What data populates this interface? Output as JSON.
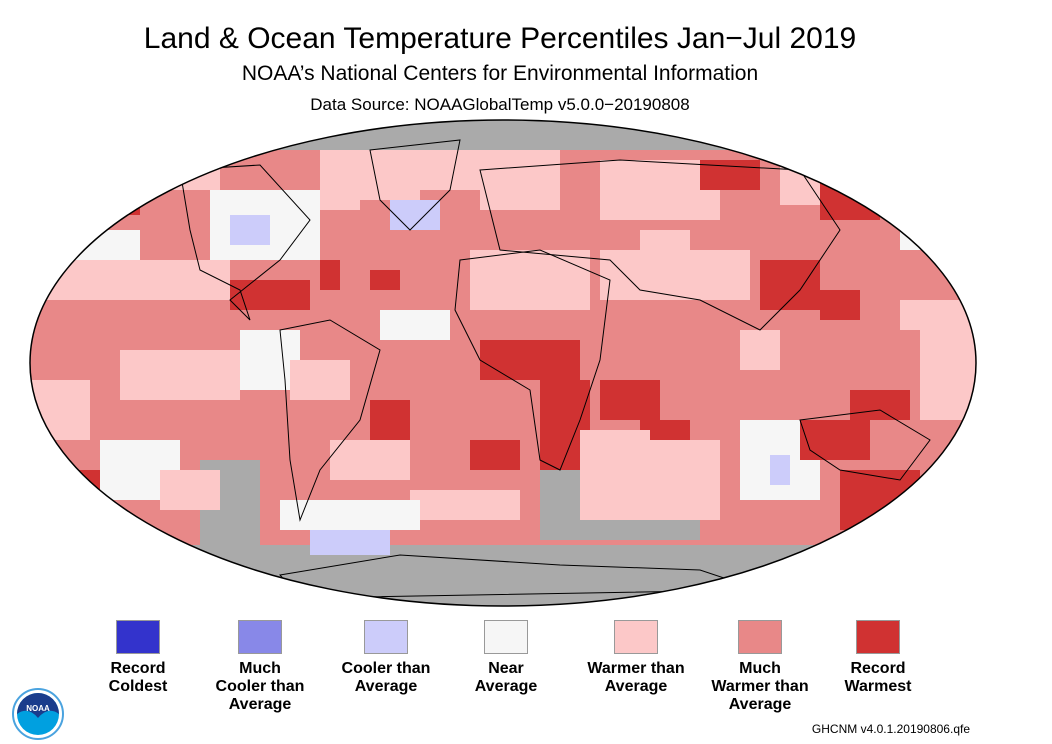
{
  "title": "Land & Ocean Temperature Percentiles Jan−Jul 2019",
  "subtitle": "NOAA’s National Centers for Environmental Information",
  "source": "Data Source: NOAAGlobalTemp v5.0.0−20190808",
  "legend": [
    {
      "l1": "Record",
      "l2": "Coldest",
      "l3": "",
      "color": "#3333cc"
    },
    {
      "l1": "Much",
      "l2": "Cooler than",
      "l3": "Average",
      "color": "#8888e8"
    },
    {
      "l1": "Cooler than",
      "l2": "Average",
      "l3": "",
      "color": "#ccccfa"
    },
    {
      "l1": "Near",
      "l2": "Average",
      "l3": "",
      "color": "#f6f6f6"
    },
    {
      "l1": "Warmer than",
      "l2": "Average",
      "l3": "",
      "color": "#fcc8c8"
    },
    {
      "l1": "Much",
      "l2": "Warmer than",
      "l3": "Average",
      "color": "#e88888"
    },
    {
      "l1": "Record",
      "l2": "Warmest",
      "l3": "",
      "color": "#d03232"
    }
  ],
  "missing_color": "#aaaaaa",
  "logo_text": "NOAA",
  "footer": "GHCNM v4.0.1.20190806.qfe"
}
